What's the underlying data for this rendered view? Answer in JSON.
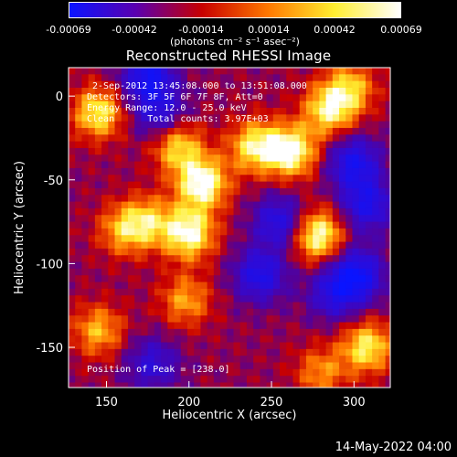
{
  "colorbar": {
    "tick_labels": [
      "-0.00069",
      "-0.00042",
      "-0.00014",
      "0.00014",
      "0.00042",
      "0.00069"
    ],
    "units_label": "(photons cm⁻² s⁻¹ asec⁻²)",
    "colors": [
      "#0a14ff",
      "#5a00b0",
      "#c80000",
      "#ff7800",
      "#ffee30",
      "#ffffff"
    ]
  },
  "chart_data": {
    "type": "heatmap",
    "title": "Reconstructed RHESSI Image",
    "xlabel": "Heliocentric X (arcsec)",
    "ylabel": "Heliocentric Y (arcsec)",
    "xlim": [
      127,
      322
    ],
    "ylim": [
      -174,
      17
    ],
    "x_ticks": [
      150,
      200,
      250,
      300
    ],
    "y_ticks": [
      0,
      -50,
      -100,
      -150
    ],
    "value_range": [
      -0.00069,
      0.00069
    ],
    "annotations": {
      "time_range": "2-Sep-2012 13:45:08.000 to 13:51:08.000",
      "detectors": "Detectors: 3F 5F 6F 7F 8F, Att=0",
      "energy_range": "Energy Range: 12.0 - 25.0 keV",
      "clean_counts": "Clean      Total counts: 3.97E+03",
      "peak": "Position of Peak = [238.0]"
    },
    "bright_features": [
      {
        "x": 145,
        "y": -10,
        "v": 0.8
      },
      {
        "x": 193,
        "y": -30,
        "v": 0.7
      },
      {
        "x": 208,
        "y": -52,
        "v": 1.0
      },
      {
        "x": 200,
        "y": -82,
        "v": 0.95
      },
      {
        "x": 240,
        "y": -30,
        "v": 0.8
      },
      {
        "x": 262,
        "y": -33,
        "v": 0.95
      },
      {
        "x": 285,
        "y": -8,
        "v": 0.8
      },
      {
        "x": 298,
        "y": 5,
        "v": 0.6
      },
      {
        "x": 278,
        "y": -83,
        "v": 0.95
      },
      {
        "x": 160,
        "y": -80,
        "v": 0.55
      },
      {
        "x": 175,
        "y": -75,
        "v": 0.6
      },
      {
        "x": 145,
        "y": -140,
        "v": 0.6
      },
      {
        "x": 198,
        "y": -122,
        "v": 0.55
      },
      {
        "x": 308,
        "y": -150,
        "v": 0.8
      },
      {
        "x": 280,
        "y": -165,
        "v": 0.5
      }
    ],
    "dark_features": [
      {
        "x": 175,
        "y": 12,
        "v": -0.85
      },
      {
        "x": 182,
        "y": -10,
        "v": -0.6
      },
      {
        "x": 300,
        "y": -40,
        "v": -0.8
      },
      {
        "x": 255,
        "y": -75,
        "v": -0.7
      },
      {
        "x": 308,
        "y": -65,
        "v": -0.75
      },
      {
        "x": 302,
        "y": -107,
        "v": -0.9
      },
      {
        "x": 243,
        "y": -107,
        "v": -0.75
      },
      {
        "x": 288,
        "y": -118,
        "v": -0.6
      },
      {
        "x": 178,
        "y": -160,
        "v": -0.55
      }
    ]
  },
  "footer": {
    "date": "14-May-2022 04:00"
  }
}
